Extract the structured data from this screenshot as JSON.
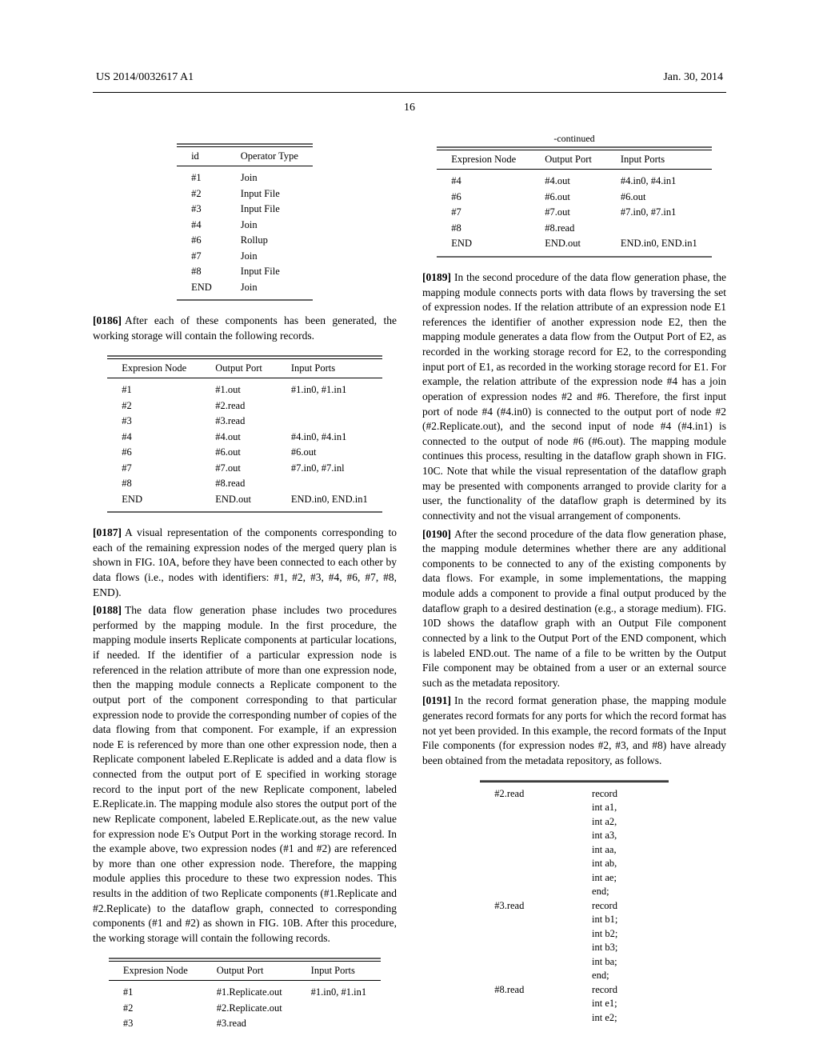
{
  "header": {
    "left": "US 2014/0032617 A1",
    "right": "Jan. 30, 2014",
    "page_number": "16"
  },
  "table1": {
    "headers": [
      "id",
      "Operator Type"
    ],
    "rows": [
      [
        "#1",
        "Join"
      ],
      [
        "#2",
        "Input File"
      ],
      [
        "#3",
        "Input File"
      ],
      [
        "#4",
        "Join"
      ],
      [
        "#6",
        "Rollup"
      ],
      [
        "#7",
        "Join"
      ],
      [
        "#8",
        "Input File"
      ],
      [
        "END",
        "Join"
      ]
    ]
  },
  "para0186": {
    "num": "[0186]",
    "text": "After each of these components has been generated, the working storage will contain the following records."
  },
  "table2": {
    "headers": [
      "Expresion Node",
      "Output Port",
      "Input Ports"
    ],
    "rows": [
      [
        "#1",
        "#1.out",
        "#1.in0, #1.in1"
      ],
      [
        "#2",
        "#2.read",
        ""
      ],
      [
        "#3",
        "#3.read",
        ""
      ],
      [
        "#4",
        "#4.out",
        "#4.in0, #4.in1"
      ],
      [
        "#6",
        "#6.out",
        "#6.out"
      ],
      [
        "#7",
        "#7.out",
        "#7.in0, #7.inl"
      ],
      [
        "#8",
        "#8.read",
        ""
      ],
      [
        "END",
        "END.out",
        "END.in0, END.in1"
      ]
    ]
  },
  "para0187": {
    "num": "[0187]",
    "text": "A visual representation of the components corresponding to each of the remaining expression nodes of the merged query plan is shown in FIG. 10A, before they have been connected to each other by data flows (i.e., nodes with identifiers: #1, #2, #3, #4, #6, #7, #8, END)."
  },
  "para0188": {
    "num": "[0188]",
    "text": "The data flow generation phase includes two procedures performed by the mapping module. In the first procedure, the mapping module inserts Replicate components at particular locations, if needed. If the identifier of a particular expression node is referenced in the relation attribute of more than one expression node, then the mapping module connects a Replicate component to the output port of the component corresponding to that particular expression node to provide the corresponding number of copies of the data flowing from that component. For example, if an expression node E is referenced by more than one other expression node, then a Replicate component labeled E.Replicate is added and a data flow is connected from the output port of E specified in working storage record to the input port of the new Replicate component, labeled E.Replicate.in. The mapping module also stores the output port of the new Replicate component, labeled E.Replicate.out, as the new value for expression node E's Output Port in the working storage record. In the example above, two expression nodes (#1 and #2) are referenced by more than one other expression node. Therefore, the mapping module applies this procedure to these two expression nodes. This results in the addition of two Replicate components (#1.Replicate and #2.Replicate) to the dataflow graph, connected to corresponding components (#1 and #2) as shown in FIG. 10B. After this procedure, the working storage will contain the following records."
  },
  "table3": {
    "headers": [
      "Expresion Node",
      "Output Port",
      "Input Ports"
    ],
    "rows": [
      [
        "#1",
        "#1.Replicate.out",
        "#1.in0, #1.in1"
      ],
      [
        "#2",
        "#2.Replicate.out",
        ""
      ],
      [
        "#3",
        "#3.read",
        ""
      ]
    ]
  },
  "table3b": {
    "continued": "-continued",
    "headers": [
      "Expresion Node",
      "Output Port",
      "Input Ports"
    ],
    "rows": [
      [
        "#4",
        "#4.out",
        "#4.in0, #4.in1"
      ],
      [
        "#6",
        "#6.out",
        "#6.out"
      ],
      [
        "#7",
        "#7.out",
        "#7.in0, #7.in1"
      ],
      [
        "#8",
        "#8.read",
        ""
      ],
      [
        "END",
        "END.out",
        "END.in0, END.in1"
      ]
    ]
  },
  "para0189": {
    "num": "[0189]",
    "text": "In the second procedure of the data flow generation phase, the mapping module connects ports with data flows by traversing the set of expression nodes. If the relation attribute of an expression node E1 references the identifier of another expression node E2, then the mapping module generates a data flow from the Output Port of E2, as recorded in the working storage record for E2, to the corresponding input port of E1, as recorded in the working storage record for E1. For example, the relation attribute of the expression node #4 has a join operation of expression nodes #2 and #6. Therefore, the first input port of node #4 (#4.in0) is connected to the output port of node #2 (#2.Replicate.out), and the second input of node #4 (#4.in1) is connected to the output of node #6 (#6.out). The mapping module continues this process, resulting in the dataflow graph shown in FIG. 10C. Note that while the visual representation of the dataflow graph may be presented with components arranged to provide clarity for a user, the functionality of the dataflow graph is determined by its connectivity and not the visual arrangement of components."
  },
  "para0190": {
    "num": "[0190]",
    "text": "After the second procedure of the data flow generation phase, the mapping module determines whether there are any additional components to be connected to any of the existing components by data flows. For example, in some implementations, the mapping module adds a component to provide a final output produced by the dataflow graph to a desired destination (e.g., a storage medium). FIG. 10D shows the dataflow graph with an Output File component connected by a link to the Output Port of the END component, which is labeled END.out. The name of a file to be written by the Output File component may be obtained from a user or an external source such as the metadata repository."
  },
  "para0191": {
    "num": "[0191]",
    "text": "In the record format generation phase, the mapping module generates record formats for any ports for which the record format has not yet been provided. In this example, the record formats of the Input File components (for expression nodes #2, #3, and #8) have already been obtained from the metadata repository, as follows."
  },
  "table4": {
    "rows": [
      [
        "#2.read",
        "record\nint a1,\nint a2,\nint a3,\nint aa,\nint ab,\nint ae;\nend;"
      ],
      [
        "#3.read",
        "record\nint b1;\nint b2;\nint b3;\nint ba;\nend;"
      ],
      [
        "#8.read",
        "record\nint e1;\nint e2;"
      ]
    ]
  }
}
